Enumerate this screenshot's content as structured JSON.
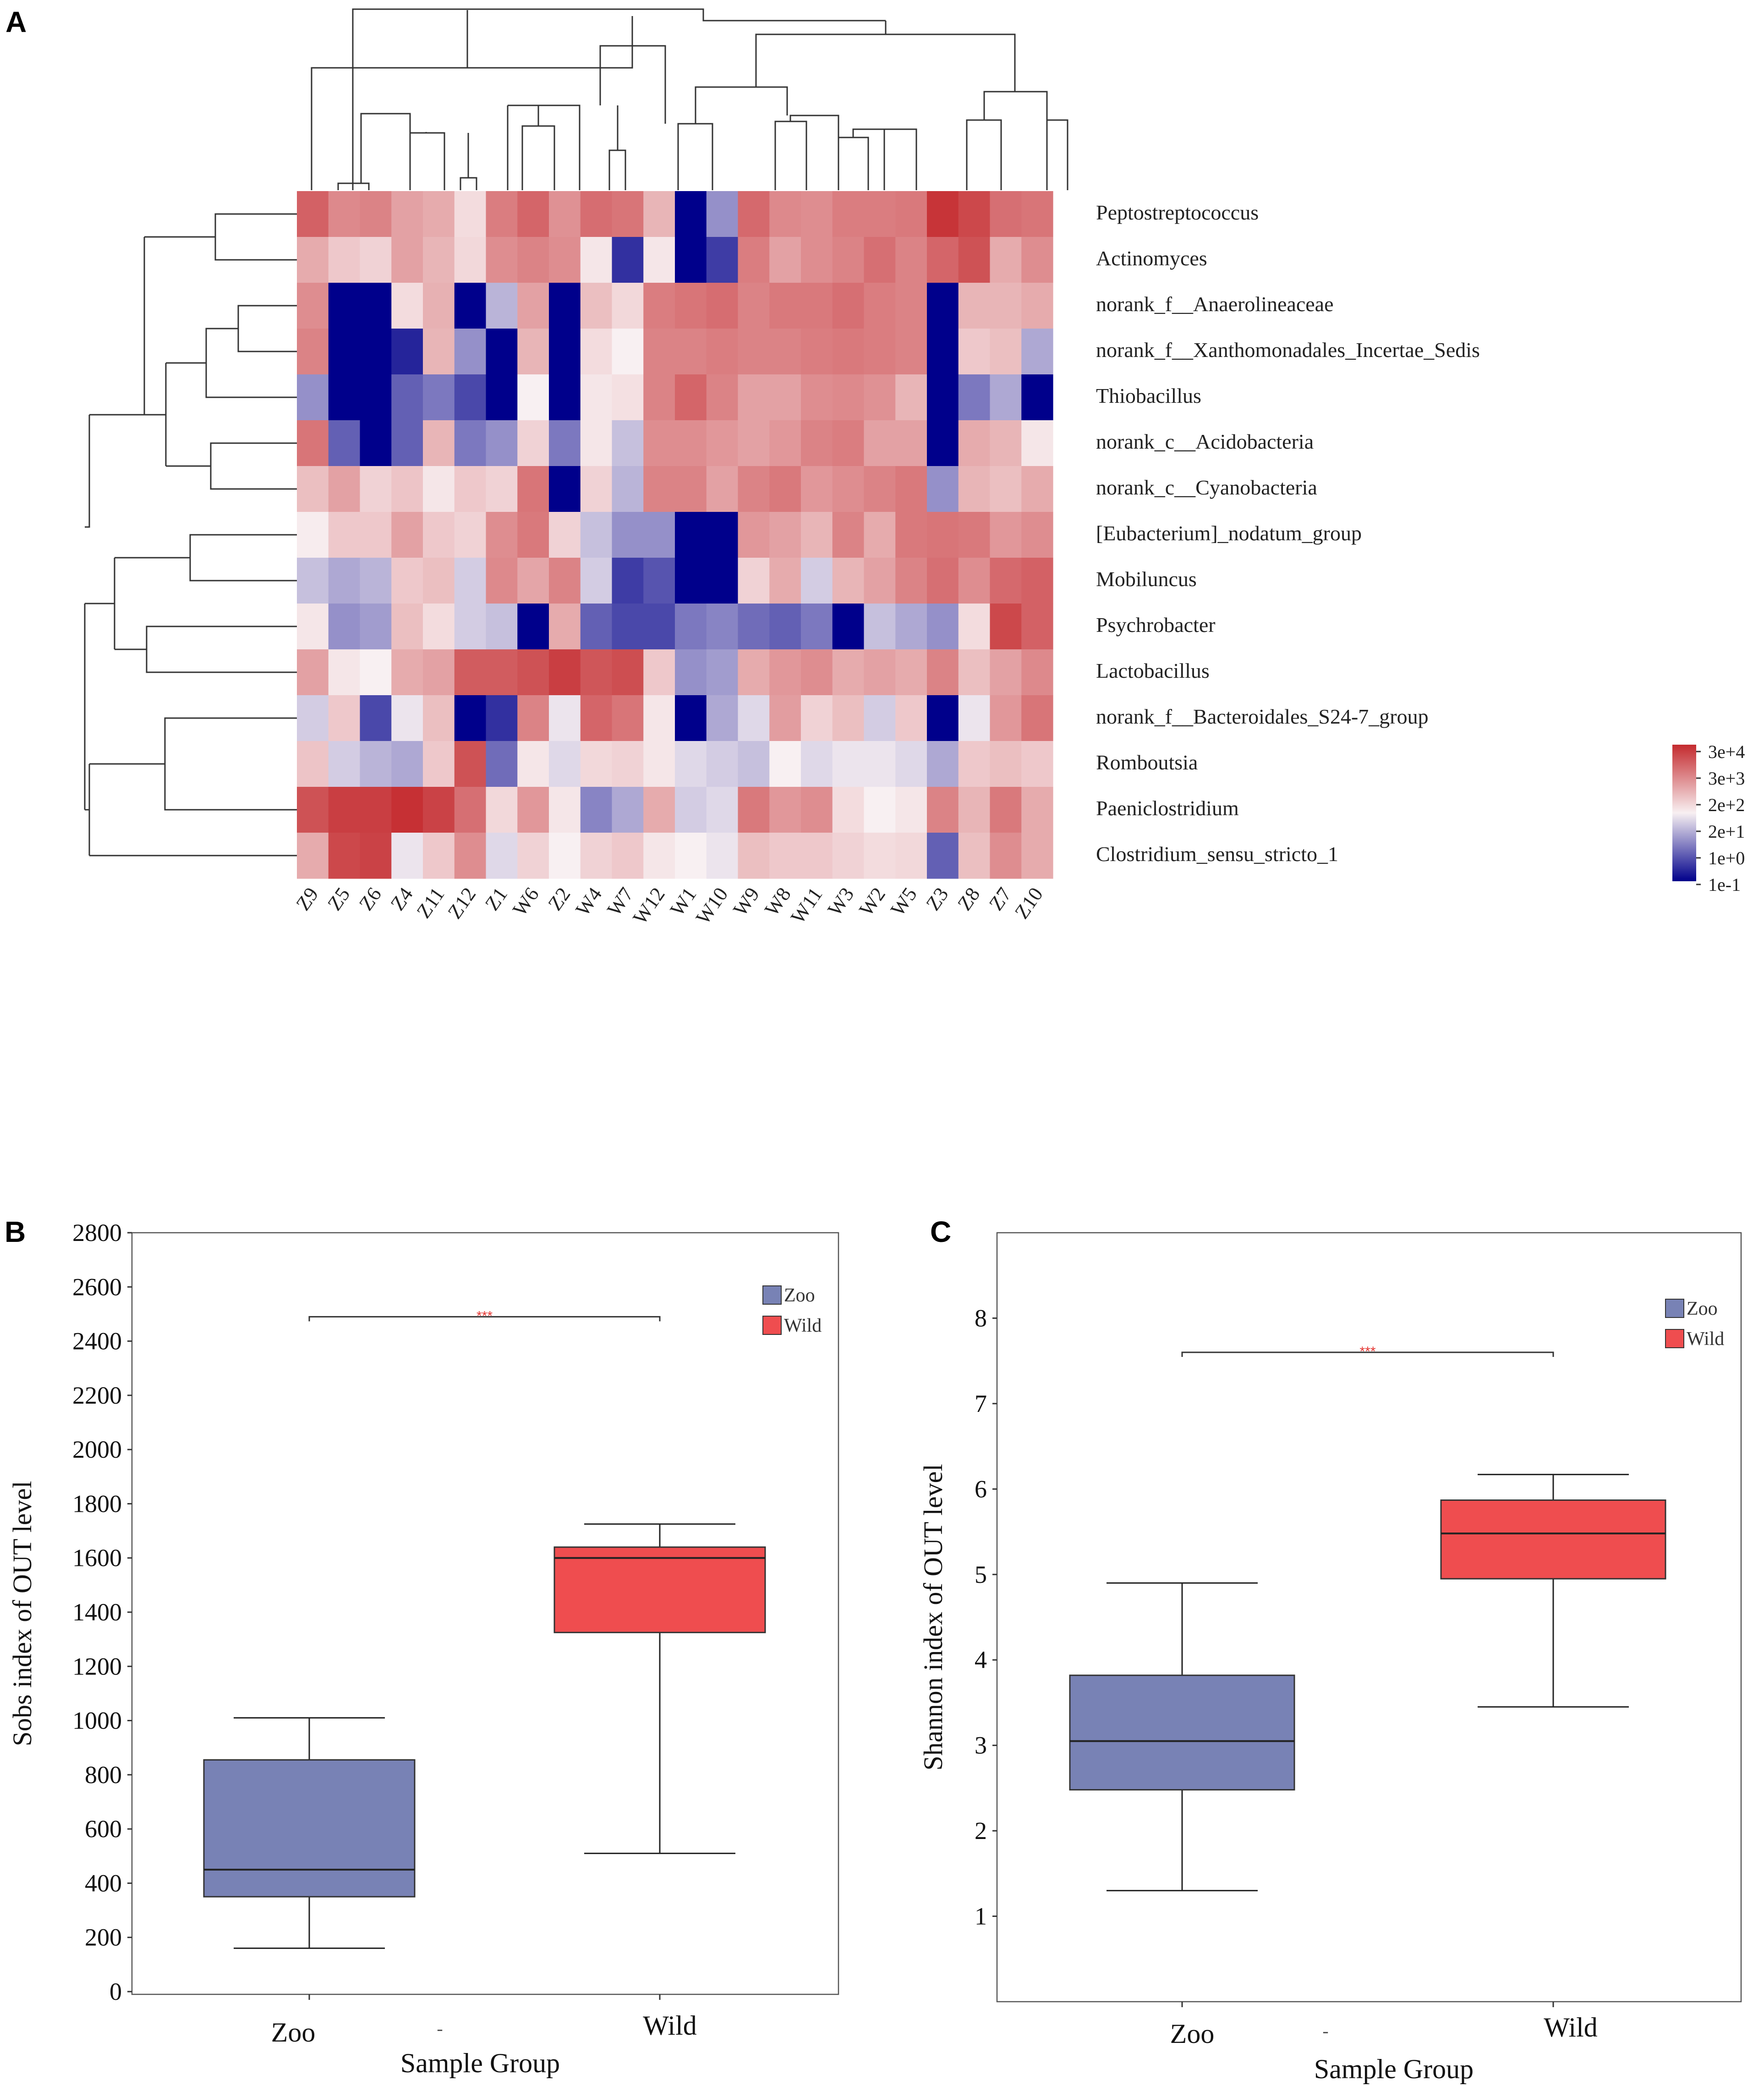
{
  "panels": {
    "a": {
      "label": "A"
    },
    "b": {
      "label": "B"
    },
    "c": {
      "label": "C"
    }
  },
  "chart_data": [
    {
      "type": "heatmap",
      "title": "",
      "columns": [
        "Z9",
        "Z5",
        "Z6",
        "Z4",
        "Z11",
        "Z12",
        "Z1",
        "W6",
        "Z2",
        "W4",
        "W7",
        "W12",
        "W1",
        "W10",
        "W9",
        "W8",
        "W11",
        "W3",
        "W2",
        "W5",
        "Z3",
        "Z8",
        "Z7",
        "Z10"
      ],
      "rows": [
        "Peptostreptococcus",
        "Actinomyces",
        "norank_f__Anaerolineaceae",
        "norank_f__Xanthomonadales_Incertae_Sedis",
        "Thiobacillus",
        "norank_c__Acidobacteria",
        "norank_c__Cyanobacteria",
        "[Eubacterium]_nodatum_group",
        "Mobiluncus",
        "Psychrobacter",
        "Lactobacillus",
        "norank_f__Bacteroidales_S24-7_group",
        "Romboutsia",
        "Paeniclostridium",
        "Clostridium_sensu_stricto_1"
      ],
      "scale_note": "cell values are color levels from -1 (lowest, 1e-1) to 1 (highest, 3e+4)",
      "values": [
        [
          0.72,
          0.52,
          0.55,
          0.4,
          0.35,
          0.1,
          0.58,
          0.7,
          0.48,
          0.66,
          0.62,
          0.3,
          -1.0,
          -0.4,
          0.68,
          0.52,
          0.5,
          0.58,
          0.58,
          0.6,
          0.95,
          0.85,
          0.65,
          0.62
        ],
        [
          0.35,
          0.2,
          0.15,
          0.4,
          0.3,
          0.12,
          0.5,
          0.55,
          0.5,
          0.05,
          -0.8,
          0.05,
          -1.0,
          -0.75,
          0.58,
          0.4,
          0.5,
          0.55,
          0.65,
          0.55,
          0.7,
          0.8,
          0.35,
          0.5
        ],
        [
          0.5,
          -1.0,
          -1.0,
          0.1,
          0.32,
          -1.0,
          -0.25,
          0.4,
          -1.0,
          0.25,
          0.12,
          0.58,
          0.62,
          0.66,
          0.55,
          0.6,
          0.6,
          0.65,
          0.58,
          0.55,
          -1.0,
          0.3,
          0.3,
          0.35
        ],
        [
          0.55,
          -1.0,
          -1.0,
          -0.85,
          0.3,
          -0.4,
          -1.0,
          0.3,
          -1.0,
          0.1,
          0.0,
          0.55,
          0.55,
          0.58,
          0.55,
          0.55,
          0.58,
          0.6,
          0.58,
          0.55,
          -1.0,
          0.2,
          0.25,
          -0.3
        ],
        [
          -0.4,
          -1.0,
          -1.0,
          -0.6,
          -0.5,
          -0.7,
          -1.0,
          0.0,
          -1.0,
          0.05,
          0.08,
          0.55,
          0.7,
          0.55,
          0.4,
          0.4,
          0.5,
          0.52,
          0.48,
          0.3,
          -1.0,
          -0.5,
          -0.3,
          -1.0
        ],
        [
          0.62,
          -0.6,
          -1.0,
          -0.6,
          0.3,
          -0.5,
          -0.4,
          0.15,
          -0.5,
          0.05,
          -0.2,
          0.5,
          0.5,
          0.45,
          0.4,
          0.45,
          0.55,
          0.58,
          0.4,
          0.4,
          -1.0,
          0.35,
          0.3,
          0.05
        ],
        [
          0.25,
          0.4,
          0.15,
          0.22,
          0.05,
          0.2,
          0.15,
          0.62,
          -1.0,
          0.15,
          -0.25,
          0.55,
          0.55,
          0.4,
          0.55,
          0.6,
          0.45,
          0.5,
          0.55,
          0.6,
          -0.4,
          0.3,
          0.25,
          0.35
        ],
        [
          0.02,
          0.2,
          0.2,
          0.4,
          0.2,
          0.15,
          0.5,
          0.6,
          0.15,
          -0.2,
          -0.4,
          -0.4,
          -1.0,
          -1.0,
          0.45,
          0.4,
          0.3,
          0.55,
          0.35,
          0.6,
          0.62,
          0.6,
          0.45,
          0.5
        ],
        [
          -0.2,
          -0.3,
          -0.25,
          0.2,
          0.25,
          -0.15,
          0.52,
          0.38,
          0.55,
          -0.15,
          -0.75,
          -0.65,
          -1.0,
          -1.0,
          0.15,
          0.35,
          -0.15,
          0.3,
          0.4,
          0.55,
          0.65,
          0.5,
          0.68,
          0.72
        ],
        [
          0.05,
          -0.4,
          -0.35,
          0.25,
          0.1,
          -0.15,
          -0.2,
          -1.0,
          0.35,
          -0.6,
          -0.7,
          -0.7,
          -0.5,
          -0.45,
          -0.55,
          -0.6,
          -0.5,
          -1.0,
          -0.2,
          -0.3,
          -0.4,
          0.1,
          0.85,
          0.72
        ],
        [
          0.4,
          0.05,
          0.0,
          0.35,
          0.4,
          0.75,
          0.75,
          0.8,
          0.9,
          0.78,
          0.82,
          0.2,
          -0.4,
          -0.35,
          0.35,
          0.45,
          0.5,
          0.35,
          0.4,
          0.35,
          0.55,
          0.25,
          0.4,
          0.52
        ],
        [
          -0.15,
          0.2,
          -0.7,
          -0.05,
          0.25,
          -1.0,
          -0.8,
          0.55,
          -0.05,
          0.7,
          0.62,
          0.05,
          -1.0,
          -0.3,
          -0.1,
          0.42,
          0.15,
          0.25,
          -0.15,
          0.2,
          -1.0,
          -0.05,
          0.45,
          0.62
        ],
        [
          0.22,
          -0.15,
          -0.25,
          -0.3,
          0.2,
          0.8,
          -0.55,
          0.05,
          -0.1,
          0.12,
          0.15,
          0.05,
          -0.1,
          -0.15,
          -0.2,
          0.0,
          -0.1,
          -0.05,
          -0.05,
          -0.1,
          -0.3,
          0.2,
          0.25,
          0.2
        ],
        [
          0.8,
          0.9,
          0.9,
          0.97,
          0.88,
          0.65,
          0.12,
          0.45,
          0.05,
          -0.45,
          -0.3,
          0.35,
          -0.15,
          -0.1,
          0.6,
          0.45,
          0.5,
          0.1,
          0.0,
          0.05,
          0.55,
          0.3,
          0.6,
          0.35
        ],
        [
          0.35,
          0.85,
          0.88,
          -0.05,
          0.2,
          0.5,
          -0.1,
          0.15,
          0.0,
          0.15,
          0.2,
          0.05,
          0.0,
          -0.05,
          0.25,
          0.2,
          0.2,
          0.15,
          0.1,
          0.12,
          -0.6,
          0.25,
          0.5,
          0.35
        ]
      ],
      "legend": {
        "ticks": [
          "3e+4",
          "3e+3",
          "2e+2",
          "2e+1",
          "1e+0",
          "1e-1"
        ]
      }
    },
    {
      "type": "box",
      "title": "",
      "xlabel": "Sample Group",
      "ylabel": "Sobs index of OUT level",
      "ylim": [
        0,
        2800
      ],
      "yticks": [
        "0",
        "200",
        "400",
        "600",
        "800",
        "1000",
        "1200",
        "1400",
        "1600",
        "1800",
        "2000",
        "2200",
        "2400",
        "2600",
        "2800"
      ],
      "groups": [
        {
          "name": "Zoo",
          "color": "#7882b5",
          "min": 160,
          "q1": 350,
          "median": 450,
          "q3": 855,
          "max": 1010
        },
        {
          "name": "Wild",
          "color": "#ef4d4f",
          "min": 510,
          "q1": 1325,
          "median": 1600,
          "q3": 1640,
          "max": 1725
        }
      ],
      "legend": [
        "Zoo",
        "Wild"
      ],
      "significance": {
        "label": "***",
        "y": 2490
      },
      "x_mid_mark": "-"
    },
    {
      "type": "box",
      "title": "",
      "xlabel": "Sample Group",
      "ylabel": "Shannon index of OUT level",
      "ylim": [
        0,
        9
      ],
      "yticks": [
        "1",
        "2",
        "3",
        "4",
        "5",
        "6",
        "7",
        "8"
      ],
      "groups": [
        {
          "name": "Zoo",
          "color": "#7882b5",
          "min": 1.3,
          "q1": 2.48,
          "median": 3.05,
          "q3": 3.82,
          "max": 4.9
        },
        {
          "name": "Wild",
          "color": "#ef4d4f",
          "min": 3.45,
          "q1": 4.95,
          "median": 5.48,
          "q3": 5.87,
          "max": 6.17
        }
      ],
      "legend": [
        "Zoo",
        "Wild"
      ],
      "significance": {
        "label": "***",
        "y": 7.6
      },
      "x_mid_mark": "-"
    }
  ]
}
